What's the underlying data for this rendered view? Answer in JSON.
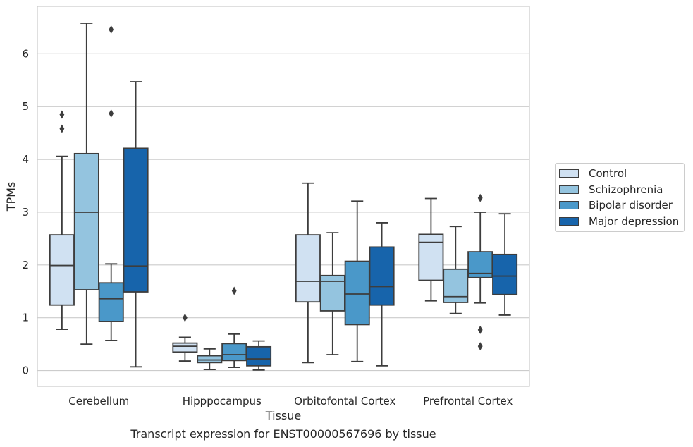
{
  "chart_data": {
    "type": "box",
    "xlabel": "Tissue",
    "ylabel": "TPMs",
    "caption": "Transcript expression for ENST00000567696 by tissue",
    "ylim": [
      -0.3,
      6.9
    ],
    "yticks": [
      0,
      1,
      2,
      3,
      4,
      5,
      6
    ],
    "grid": "horizontal",
    "legend_position": "right",
    "categories": [
      "Cerebellum",
      "Hipppocampus",
      "Orbitofontal Cortex",
      "Prefrontal Cortex"
    ],
    "series": [
      {
        "name": "Control",
        "color": "#d0e1f2",
        "boxes": [
          {
            "whislo": 0.78,
            "q1": 1.24,
            "med": 1.99,
            "q3": 2.57,
            "whishi": 4.06,
            "fliers": [
              4.58,
              4.85
            ]
          },
          {
            "whislo": 0.18,
            "q1": 0.35,
            "med": 0.46,
            "q3": 0.52,
            "whishi": 0.63,
            "fliers": [
              1.0
            ]
          },
          {
            "whislo": 0.15,
            "q1": 1.3,
            "med": 1.69,
            "q3": 2.57,
            "whishi": 3.55,
            "fliers": []
          },
          {
            "whislo": 1.32,
            "q1": 1.71,
            "med": 2.43,
            "q3": 2.58,
            "whishi": 3.26,
            "fliers": []
          }
        ]
      },
      {
        "name": "Schizophrenia",
        "color": "#94c4df",
        "boxes": [
          {
            "whislo": 0.5,
            "q1": 1.53,
            "med": 3.0,
            "q3": 4.11,
            "whishi": 6.58,
            "fliers": []
          },
          {
            "whislo": 0.02,
            "q1": 0.15,
            "med": 0.2,
            "q3": 0.28,
            "whishi": 0.41,
            "fliers": []
          },
          {
            "whislo": 0.3,
            "q1": 1.13,
            "med": 1.69,
            "q3": 1.8,
            "whishi": 2.61,
            "fliers": []
          },
          {
            "whislo": 1.08,
            "q1": 1.29,
            "med": 1.4,
            "q3": 1.92,
            "whishi": 2.73,
            "fliers": []
          }
        ]
      },
      {
        "name": "Bipolar disorder",
        "color": "#4a98c9",
        "boxes": [
          {
            "whislo": 0.57,
            "q1": 0.93,
            "med": 1.36,
            "q3": 1.66,
            "whishi": 2.02,
            "fliers": [
              4.87,
              6.46
            ]
          },
          {
            "whislo": 0.06,
            "q1": 0.19,
            "med": 0.3,
            "q3": 0.51,
            "whishi": 0.69,
            "fliers": [
              1.51
            ]
          },
          {
            "whislo": 0.17,
            "q1": 0.87,
            "med": 1.45,
            "q3": 2.07,
            "whishi": 3.21,
            "fliers": []
          },
          {
            "whislo": 1.28,
            "q1": 1.76,
            "med": 1.84,
            "q3": 2.25,
            "whishi": 3.0,
            "fliers": [
              0.46,
              0.77,
              3.27
            ]
          }
        ]
      },
      {
        "name": "Major depression",
        "color": "#1764ab",
        "boxes": [
          {
            "whislo": 0.07,
            "q1": 1.49,
            "med": 1.98,
            "q3": 4.21,
            "whishi": 5.47,
            "fliers": []
          },
          {
            "whislo": 0.01,
            "q1": 0.09,
            "med": 0.22,
            "q3": 0.45,
            "whishi": 0.56,
            "fliers": []
          },
          {
            "whislo": 0.09,
            "q1": 1.24,
            "med": 1.59,
            "q3": 2.34,
            "whishi": 2.8,
            "fliers": []
          },
          {
            "whislo": 1.05,
            "q1": 1.44,
            "med": 1.79,
            "q3": 2.2,
            "whishi": 2.97,
            "fliers": []
          }
        ]
      }
    ]
  }
}
